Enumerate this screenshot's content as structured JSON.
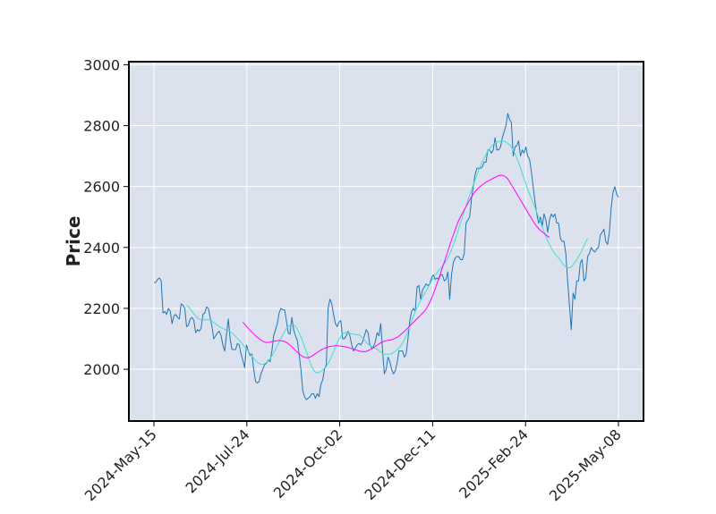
{
  "chart_data": {
    "type": "line",
    "title": "",
    "xlabel": "",
    "ylabel": "Price",
    "ylim": [
      1830,
      3010
    ],
    "yticks": [
      2000,
      2200,
      2400,
      2600,
      2800,
      3000
    ],
    "xticks": [
      "2024-May-15",
      "2024-Jul-24",
      "2024-Oct-02",
      "2024-Dec-11",
      "2025-Feb-24",
      "2025-May-08"
    ],
    "grid": true,
    "background": "#dce1ee",
    "series": [
      {
        "color": "#1f77b4",
        "values": [
          2285,
          2285,
          2295,
          2300,
          2290,
          2185,
          2190,
          2180,
          2200,
          2190,
          2150,
          2175,
          2180,
          2170,
          2165,
          2215,
          2210,
          2200,
          2140,
          2145,
          2165,
          2170,
          2160,
          2120,
          2130,
          2125,
          2135,
          2180,
          2185,
          2205,
          2200,
          2170,
          2140,
          2100,
          2110,
          2120,
          2125,
          2110,
          2080,
          2060,
          2115,
          2165,
          2100,
          2065,
          2065,
          2065,
          2085,
          2080,
          2050,
          2030,
          2005,
          2080,
          2060,
          2045,
          2050,
          2000,
          1960,
          1955,
          1960,
          1985,
          2000,
          2015,
          2020,
          2030,
          2025,
          2060,
          2110,
          2130,
          2150,
          2185,
          2200,
          2195,
          2195,
          2160,
          2120,
          2115,
          2170,
          2130,
          2110,
          2095,
          2050,
          2000,
          1930,
          1910,
          1900,
          1905,
          1910,
          1920,
          1920,
          1905,
          1920,
          1910,
          1950,
          1965,
          2000,
          2015,
          2200,
          2230,
          2215,
          2180,
          2150,
          2140,
          2155,
          2160,
          2100,
          2100,
          2110,
          2125,
          2110,
          2080,
          2060,
          2070,
          2080,
          2085,
          2080,
          2090,
          2110,
          2130,
          2120,
          2080,
          2070,
          2075,
          2090,
          2120,
          2110,
          2150,
          2060,
          1985,
          2000,
          2040,
          2025,
          2000,
          1985,
          1995,
          2020,
          2060,
          2060,
          2060,
          2040,
          2050,
          2100,
          2160,
          2190,
          2200,
          2190,
          2270,
          2275,
          2230,
          2260,
          2270,
          2280,
          2275,
          2280,
          2300,
          2310,
          2295,
          2300,
          2295,
          2310,
          2310,
          2290,
          2295,
          2320,
          2230,
          2310,
          2350,
          2365,
          2370,
          2370,
          2360,
          2360,
          2380,
          2480,
          2490,
          2500,
          2560,
          2600,
          2640,
          2660,
          2660,
          2660,
          2665,
          2680,
          2680,
          2720,
          2720,
          2710,
          2720,
          2760,
          2720,
          2720,
          2730,
          2760,
          2780,
          2800,
          2840,
          2820,
          2810,
          2700,
          2730,
          2735,
          2750,
          2700,
          2720,
          2710,
          2730,
          2700,
          2690,
          2650,
          2600,
          2550,
          2510,
          2480,
          2500,
          2470,
          2510,
          2490,
          2450,
          2490,
          2510,
          2500,
          2510,
          2480,
          2480,
          2430,
          2420,
          2420,
          2380,
          2290,
          2210,
          2130,
          2250,
          2230,
          2290,
          2290,
          2350,
          2360,
          2290,
          2300,
          2370,
          2380,
          2400,
          2390,
          2385,
          2395,
          2400,
          2440,
          2450,
          2460,
          2420,
          2410,
          2450,
          2530,
          2580,
          2600,
          2575,
          2565
        ]
      },
      {
        "color": "#40e0d0",
        "values": [
          null,
          null,
          null,
          null,
          null,
          null,
          null,
          null,
          null,
          null,
          null,
          null,
          null,
          null,
          null,
          null,
          null,
          null,
          2210,
          2206,
          2198,
          2190,
          2182,
          2175,
          2168,
          2164,
          2162,
          2161,
          2162,
          2163,
          2163,
          2161,
          2158,
          2154,
          2149,
          2144,
          2140,
          2137,
          2134,
          2131,
          2128,
          2126,
          2123,
          2120,
          2115,
          2108,
          2101,
          2095,
          2088,
          2081,
          2074,
          2067,
          2060,
          2052,
          2044,
          2036,
          2029,
          2023,
          2019,
          2016,
          2016,
          2018,
          2022,
          2028,
          2035,
          2044,
          2054,
          2065,
          2077,
          2089,
          2101,
          2113,
          2124,
          2133,
          2140,
          2145,
          2147,
          2146,
          2141,
          2132,
          2120,
          2106,
          2091,
          2075,
          2058,
          2041,
          2024,
          2009,
          1997,
          1990,
          1988,
          1990,
          1994,
          1998,
          2003,
          2009,
          2018,
          2030,
          2044,
          2058,
          2073,
          2087,
          2099,
          2108,
          2115,
          2119,
          2121,
          2121,
          2119,
          2117,
          2115,
          2114,
          2114,
          2113,
          2109,
          2103,
          2096,
          2089,
          2083,
          2078,
          2074,
          2071,
          2069,
          2066,
          2062,
          2057,
          2052,
          2050,
          2049,
          2049,
          2050,
          2052,
          2055,
          2059,
          2064,
          2070,
          2077,
          2086,
          2097,
          2111,
          2127,
          2143,
          2159,
          2175,
          2190,
          2203,
          2215,
          2226,
          2236,
          2246,
          2257,
          2268,
          2279,
          2290,
          2300,
          2309,
          2317,
          2325,
          2331,
          2338,
          2346,
          2355,
          2366,
          2378,
          2392,
          2408,
          2425,
          2443,
          2462,
          2481,
          2500,
          2519,
          2537,
          2555,
          2572,
          2589,
          2606,
          2622,
          2638,
          2653,
          2668,
          2682,
          2694,
          2706,
          2716,
          2725,
          2732,
          2738,
          2743,
          2746,
          2748,
          2749,
          2749,
          2748,
          2746,
          2742,
          2737,
          2730,
          2720,
          2708,
          2694,
          2678,
          2661,
          2643,
          2625,
          2608,
          2591,
          2576,
          2561,
          2546,
          2531,
          2515,
          2499,
          2483,
          2467,
          2452,
          2437,
          2423,
          2410,
          2398,
          2388,
          2379,
          2372,
          2366,
          2358,
          2349,
          2341,
          2336,
          2333,
          2333,
          2336,
          2343,
          2351,
          2360,
          2370,
          2380,
          2392,
          2405,
          2418,
          2430
        ]
      },
      {
        "color": "#ff00ff",
        "values": [
          null,
          null,
          null,
          null,
          null,
          null,
          null,
          null,
          null,
          null,
          null,
          null,
          null,
          null,
          null,
          null,
          null,
          null,
          null,
          null,
          null,
          null,
          null,
          null,
          null,
          null,
          null,
          null,
          null,
          null,
          null,
          null,
          null,
          null,
          null,
          null,
          null,
          null,
          null,
          null,
          null,
          null,
          null,
          null,
          null,
          null,
          null,
          null,
          null,
          2155,
          2148,
          2141,
          2134,
          2128,
          2122,
          2116,
          2110,
          2105,
          2100,
          2096,
          2092,
          2089,
          2088,
          2088,
          2089,
          2091,
          2092,
          2093,
          2094,
          2094,
          2094,
          2093,
          2091,
          2088,
          2084,
          2079,
          2074,
          2068,
          2062,
          2056,
          2051,
          2046,
          2042,
          2039,
          2038,
          2038,
          2040,
          2043,
          2047,
          2051,
          2055,
          2059,
          2063,
          2066,
          2069,
          2071,
          2073,
          2075,
          2076,
          2077,
          2077,
          2077,
          2077,
          2076,
          2075,
          2074,
          2073,
          2072,
          2070,
          2068,
          2066,
          2064,
          2062,
          2060,
          2059,
          2058,
          2058,
          2059,
          2061,
          2064,
          2067,
          2071,
          2075,
          2079,
          2083,
          2087,
          2090,
          2092,
          2094,
          2095,
          2096,
          2097,
          2099,
          2102,
          2105,
          2109,
          2114,
          2119,
          2124,
          2130,
          2136,
          2142,
          2148,
          2154,
          2160,
          2166,
          2172,
          2178,
          2184,
          2190,
          2198,
          2208,
          2220,
          2233,
          2248,
          2264,
          2281,
          2298,
          2316,
          2334,
          2352,
          2370,
          2388,
          2406,
          2424,
          2441,
          2458,
          2474,
          2489,
          2501,
          2512,
          2523,
          2534,
          2545,
          2556,
          2566,
          2575,
          2583,
          2590,
          2596,
          2601,
          2606,
          2610,
          2614,
          2618,
          2621,
          2624,
          2627,
          2630,
          2633,
          2636,
          2637,
          2637,
          2635,
          2631,
          2625,
          2616,
          2606,
          2596,
          2586,
          2576,
          2566,
          2556,
          2546,
          2536,
          2526,
          2516,
          2506,
          2496,
          2486,
          2477,
          2469,
          2462,
          2456,
          2451,
          2446,
          2441,
          2437,
          2433
        ]
      }
    ]
  }
}
